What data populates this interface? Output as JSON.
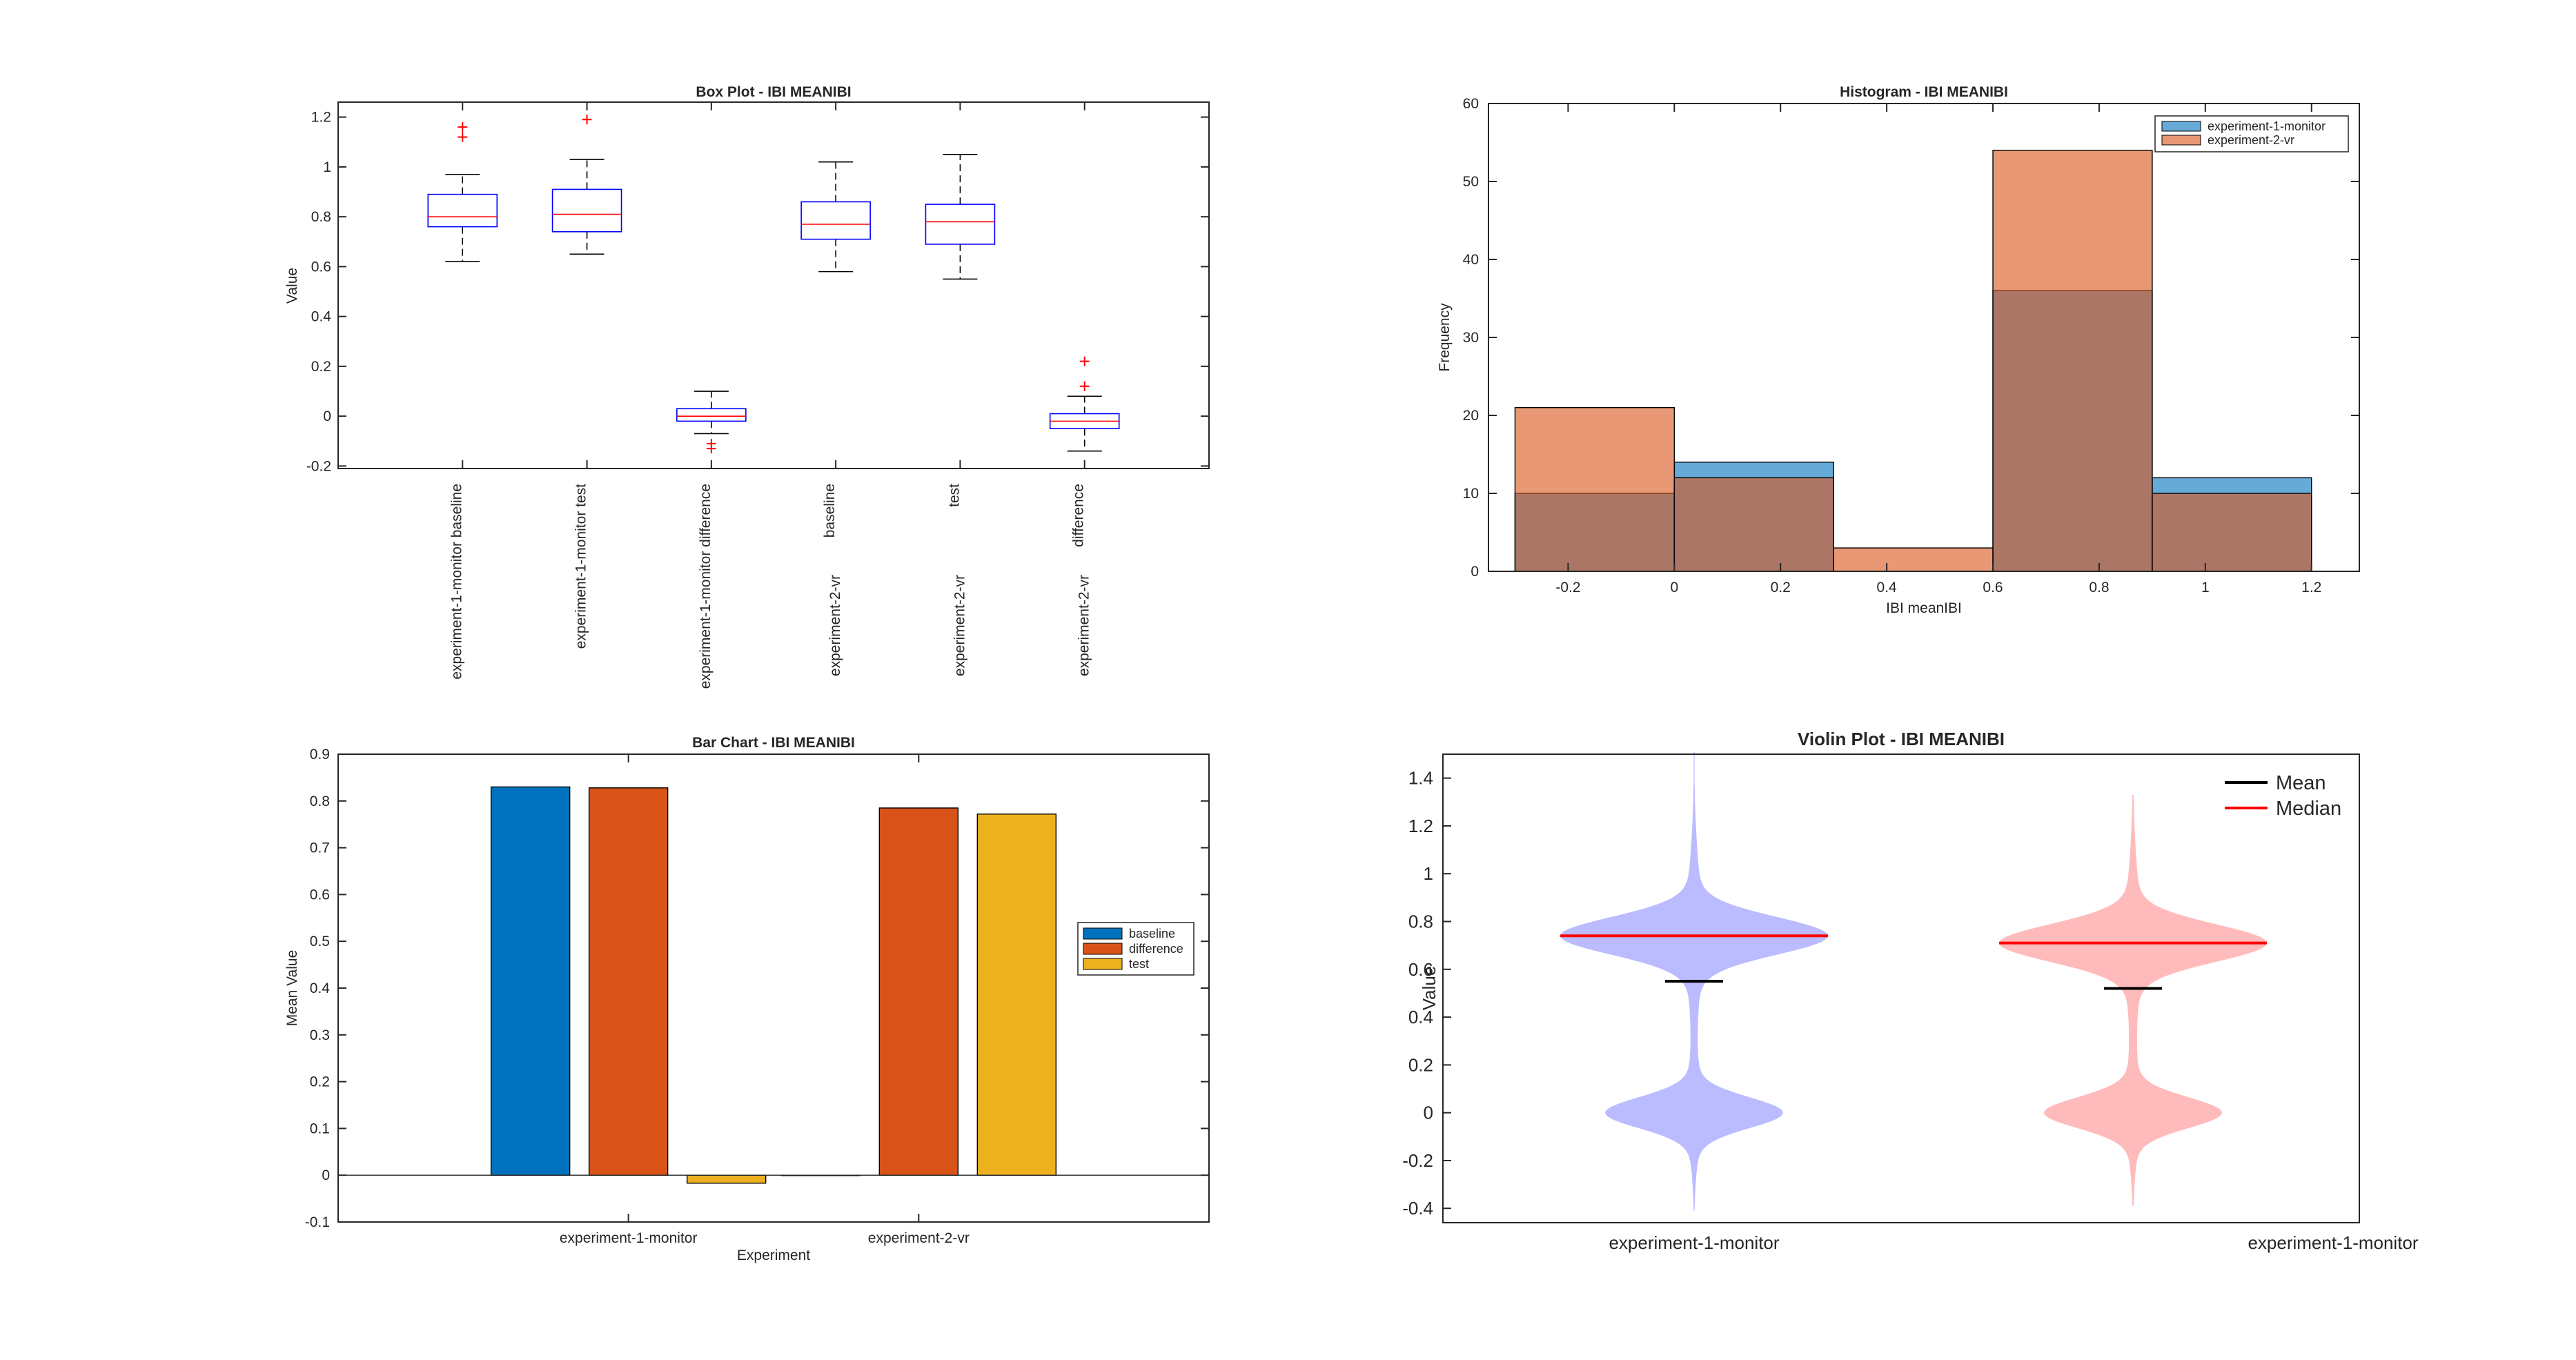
{
  "chart_data": [
    {
      "type": "box",
      "title": "Box Plot - IBI MEANIBI",
      "xlabel": "",
      "ylabel": "Value",
      "ylim": [
        -0.21,
        1.26
      ],
      "yticks": [
        -0.2,
        0,
        0.2,
        0.4,
        0.6,
        0.8,
        1,
        1.2
      ],
      "ytick_labels": [
        "-0.2",
        "0",
        "0.2",
        "0.4",
        "0.6",
        "0.8",
        "1",
        "1.2"
      ],
      "grid": false,
      "colors": {
        "box": "#0000ff",
        "median": "#ff0000",
        "whisker": "#000000",
        "outlier": "#ff0000"
      },
      "groups": [
        {
          "top": "experiment-1-monitor baseline",
          "bottom": "",
          "q1": 0.76,
          "median": 0.8,
          "q3": 0.89,
          "whisker_low": 0.62,
          "whisker_high": 0.97,
          "outliers": [
            1.12,
            1.16
          ]
        },
        {
          "top": "experiment-1-monitor test",
          "bottom": "",
          "q1": 0.74,
          "median": 0.81,
          "q3": 0.91,
          "whisker_low": 0.65,
          "whisker_high": 1.03,
          "outliers": [
            1.19
          ]
        },
        {
          "top": "experiment-1-monitor difference",
          "bottom": "",
          "q1": -0.02,
          "median": 0.0,
          "q3": 0.03,
          "whisker_low": -0.07,
          "whisker_high": 0.1,
          "outliers": [
            -0.11,
            -0.13
          ]
        },
        {
          "top": "baseline",
          "bottom": "experiment-2-vr",
          "q1": 0.71,
          "median": 0.77,
          "q3": 0.86,
          "whisker_low": 0.58,
          "whisker_high": 1.02,
          "outliers": []
        },
        {
          "top": "test",
          "bottom": "experiment-2-vr",
          "q1": 0.69,
          "median": 0.78,
          "q3": 0.85,
          "whisker_low": 0.55,
          "whisker_high": 1.05,
          "outliers": []
        },
        {
          "top": "difference",
          "bottom": "experiment-2-vr",
          "q1": -0.05,
          "median": -0.02,
          "q3": 0.01,
          "whisker_low": -0.14,
          "whisker_high": 0.08,
          "outliers": [
            0.12,
            0.22
          ]
        }
      ]
    },
    {
      "type": "histogram",
      "title": "Histogram - IBI MEANIBI",
      "xlabel": "IBI meanIBI",
      "ylabel": "Frequency",
      "xlim": [
        -0.35,
        1.29
      ],
      "ylim": [
        0,
        60
      ],
      "xticks": [
        -0.2,
        0,
        0.2,
        0.4,
        0.6,
        0.8,
        1,
        1.2
      ],
      "xtick_labels": [
        "-0.2",
        "0",
        "0.2",
        "0.4",
        "0.6",
        "0.8",
        "1",
        "1.2"
      ],
      "yticks": [
        0,
        10,
        20,
        30,
        40,
        50,
        60
      ],
      "ytick_labels": [
        "0",
        "10",
        "20",
        "30",
        "40",
        "50",
        "60"
      ],
      "bin_edges": [
        -0.3,
        0,
        0.3,
        0.6,
        0.9,
        1.2
      ],
      "legend": "top-right",
      "grid": false,
      "series": [
        {
          "name": "experiment-1-monitor",
          "values": [
            10,
            14,
            0,
            36,
            12
          ],
          "color": "#0072bd"
        },
        {
          "name": "experiment-2-vr",
          "values": [
            21,
            12,
            3,
            54,
            10
          ],
          "color": "#d95319"
        }
      ]
    },
    {
      "type": "bar",
      "title": "Bar Chart - IBI MEANIBI",
      "xlabel": "Experiment",
      "ylabel": "Mean Value",
      "ylim": [
        -0.1,
        0.9
      ],
      "yticks": [
        -0.1,
        0,
        0.1,
        0.2,
        0.3,
        0.4,
        0.5,
        0.6,
        0.7,
        0.8,
        0.9
      ],
      "ytick_labels": [
        "-0.1",
        "0",
        "0.1",
        "0.2",
        "0.3",
        "0.4",
        "0.5",
        "0.6",
        "0.7",
        "0.8",
        "0.9"
      ],
      "categories": [
        "experiment-1-monitor",
        "experiment-2-vr"
      ],
      "legend": "center-right",
      "grid": false,
      "series": [
        {
          "name": "baseline",
          "values": [
            0.83,
            0.0
          ],
          "color": "#0072bd"
        },
        {
          "name": "difference",
          "values": [
            0.828,
            0.785
          ],
          "color": "#d95319"
        },
        {
          "name": "test",
          "values": [
            -0.017,
            0.772
          ],
          "color": "#edb120"
        }
      ]
    },
    {
      "type": "violin",
      "title": "Violin Plot - IBI MEANIBI",
      "xlabel": "",
      "ylabel": "Value",
      "ylim": [
        -0.46,
        1.5
      ],
      "yticks": [
        -0.4,
        -0.2,
        0,
        0.2,
        0.4,
        0.6,
        0.8,
        1,
        1.2,
        1.4
      ],
      "ytick_labels": [
        "-0.4",
        "-0.2",
        "0",
        "0.2",
        "0.4",
        "0.6",
        "0.8",
        "1",
        "1.2",
        "1.4"
      ],
      "categories": [
        "experiment-1-monitor",
        "experiment-1-monitor"
      ],
      "legend": "top-right",
      "legend_entries": [
        {
          "name": "Mean",
          "color": "#000000"
        },
        {
          "name": "Median",
          "color": "#ff0000"
        }
      ],
      "grid": false,
      "groups": [
        {
          "mean": 0.55,
          "median": 0.74,
          "y_min": -0.41,
          "y_max": 1.51,
          "fill": "#bbbbff"
        },
        {
          "mean": 0.52,
          "median": 0.71,
          "y_min": -0.39,
          "y_max": 1.33,
          "fill": "#ffbbbb"
        }
      ]
    }
  ]
}
